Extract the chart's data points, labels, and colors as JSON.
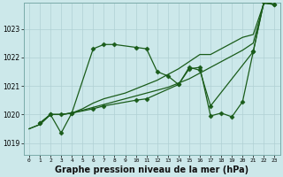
{
  "bg_color": "#cce8ea",
  "grid_color": "#b0d0d4",
  "line_color": "#1a5c1a",
  "xlabel": "Graphe pression niveau de la mer (hPa)",
  "xlabel_fontsize": 7.0,
  "ylabel_labels": [
    1019,
    1020,
    1021,
    1022,
    1023
  ],
  "xlim": [
    -0.5,
    23.5
  ],
  "ylim": [
    1018.6,
    1023.9
  ],
  "series": [
    {
      "x": [
        0,
        1,
        2,
        3,
        4,
        5,
        6,
        7,
        8,
        9,
        10,
        11,
        12,
        13,
        14,
        15,
        16,
        17,
        18,
        19,
        20,
        21,
        22,
        23
      ],
      "y": [
        1019.5,
        1019.65,
        1020.0,
        1020.0,
        1020.05,
        1020.15,
        1020.25,
        1020.35,
        1020.45,
        1020.55,
        1020.65,
        1020.75,
        1020.85,
        1020.95,
        1021.1,
        1021.25,
        1021.45,
        1021.65,
        1021.85,
        1022.05,
        1022.25,
        1022.5,
        1023.9,
        1023.85
      ],
      "marker": null,
      "linestyle": "-",
      "linewidth": 0.9
    },
    {
      "x": [
        0,
        1,
        2,
        3,
        4,
        5,
        6,
        7,
        8,
        9,
        10,
        11,
        12,
        13,
        14,
        15,
        16,
        17,
        18,
        19,
        20,
        21,
        22,
        23
      ],
      "y": [
        1019.5,
        1019.65,
        1020.0,
        1020.0,
        1020.05,
        1020.2,
        1020.4,
        1020.55,
        1020.65,
        1020.75,
        1020.9,
        1021.05,
        1021.2,
        1021.4,
        1021.6,
        1021.85,
        1022.1,
        1022.1,
        1022.3,
        1022.5,
        1022.7,
        1022.8,
        1023.9,
        1023.85
      ],
      "marker": null,
      "linestyle": "-",
      "linewidth": 0.9
    },
    {
      "x": [
        1,
        2,
        3,
        4,
        6,
        7,
        8,
        10,
        11,
        12,
        13,
        14,
        15,
        16,
        17,
        21,
        22,
        23
      ],
      "y": [
        1019.7,
        1020.0,
        1019.35,
        1020.05,
        1022.3,
        1022.45,
        1022.45,
        1022.35,
        1022.3,
        1021.5,
        1021.35,
        1021.05,
        1021.65,
        1021.55,
        1020.3,
        1022.2,
        1023.95,
        1023.85
      ],
      "marker": "D",
      "markersize": 2.5,
      "linestyle": "-",
      "linewidth": 0.9
    },
    {
      "x": [
        1,
        2,
        3,
        4,
        6,
        7,
        10,
        11,
        14,
        15,
        16,
        17,
        18,
        19,
        20,
        21,
        22,
        23
      ],
      "y": [
        1019.7,
        1020.0,
        1020.0,
        1020.05,
        1020.2,
        1020.3,
        1020.5,
        1020.55,
        1021.05,
        1021.6,
        1021.65,
        1019.95,
        1020.05,
        1019.92,
        1020.45,
        1022.2,
        1023.95,
        1023.85
      ],
      "marker": "D",
      "markersize": 2.5,
      "linestyle": "-",
      "linewidth": 0.9
    }
  ]
}
